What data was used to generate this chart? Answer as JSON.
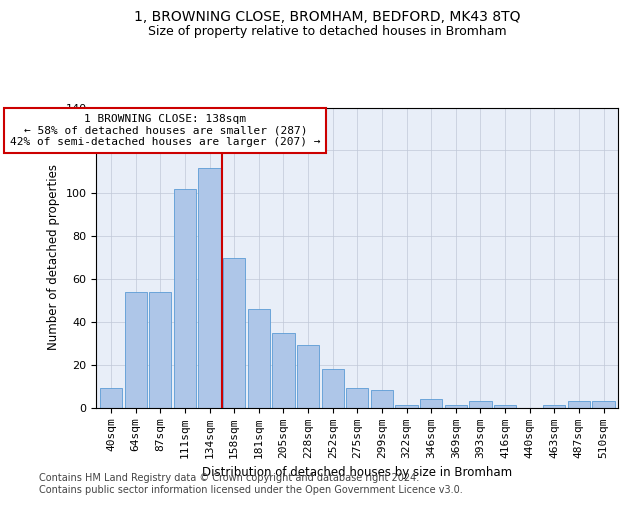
{
  "title": "1, BROWNING CLOSE, BROMHAM, BEDFORD, MK43 8TQ",
  "subtitle": "Size of property relative to detached houses in Bromham",
  "xlabel": "Distribution of detached houses by size in Bromham",
  "ylabel": "Number of detached properties",
  "bar_labels": [
    "40sqm",
    "64sqm",
    "87sqm",
    "111sqm",
    "134sqm",
    "158sqm",
    "181sqm",
    "205sqm",
    "228sqm",
    "252sqm",
    "275sqm",
    "299sqm",
    "322sqm",
    "346sqm",
    "369sqm",
    "393sqm",
    "416sqm",
    "440sqm",
    "463sqm",
    "487sqm",
    "510sqm"
  ],
  "bar_values": [
    9,
    54,
    54,
    102,
    112,
    70,
    46,
    35,
    29,
    18,
    9,
    8,
    1,
    4,
    1,
    3,
    1,
    0,
    1,
    3,
    3
  ],
  "bar_color": "#aec6e8",
  "bar_edge_color": "#5b9bd5",
  "property_line_x": 4.5,
  "annotation_text": "1 BROWNING CLOSE: 138sqm\n← 58% of detached houses are smaller (287)\n42% of semi-detached houses are larger (207) →",
  "annotation_box_color": "#ffffff",
  "annotation_box_edge": "#cc0000",
  "vline_color": "#cc0000",
  "ylim": [
    0,
    140
  ],
  "yticks": [
    0,
    20,
    40,
    60,
    80,
    100,
    120,
    140
  ],
  "background_color": "#e8eef8",
  "footer_text": "Contains HM Land Registry data © Crown copyright and database right 2024.\nContains public sector information licensed under the Open Government Licence v3.0.",
  "title_fontsize": 10,
  "subtitle_fontsize": 9,
  "xlabel_fontsize": 8.5,
  "ylabel_fontsize": 8.5,
  "footer_fontsize": 7,
  "tick_fontsize": 8,
  "annot_fontsize": 8
}
